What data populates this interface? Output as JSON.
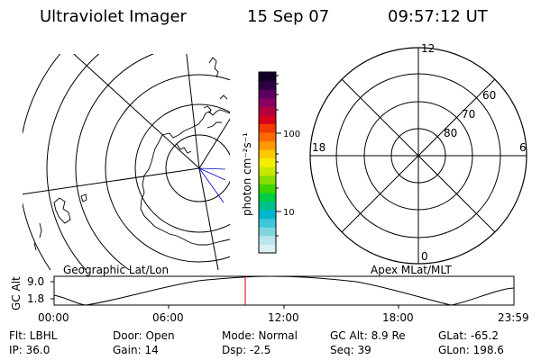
{
  "header": {
    "instrument": "Ultraviolet Imager",
    "date": "15 Sep 07",
    "time": "09:57:12 UT"
  },
  "left_panel": {
    "label": "Geographic Lat/Lon"
  },
  "colorbar": {
    "unit_label": "photon cm⁻²s⁻¹",
    "ticks": [
      "100",
      "10"
    ],
    "scale": "log",
    "colors": [
      "#d9f0f2",
      "#b8e6ea",
      "#7fd6de",
      "#3cc8d8",
      "#00b7cf",
      "#00c08a",
      "#00cc44",
      "#3dd400",
      "#88dd00",
      "#c8e600",
      "#f3ee00",
      "#ffc800",
      "#ff9800",
      "#ff6a00",
      "#f03a00",
      "#d8001a",
      "#b2003f",
      "#8a0060",
      "#5a0060",
      "#2b0040",
      "#120025"
    ]
  },
  "right_panel": {
    "label": "Apex MLat/MLT",
    "mlt_labels": {
      "top": "12",
      "bottom": "0",
      "left": "18",
      "right": "6"
    },
    "lat_labels": [
      "60",
      "70",
      "80"
    ]
  },
  "altitude_plot": {
    "ylabel": "GC Alt",
    "yticks": [
      "9.0",
      "1.8"
    ],
    "xticks": [
      "00:00",
      "06:00",
      "12:00",
      "18:00",
      "23:59"
    ],
    "marker_color": "#e00000",
    "marker_time": "09:57"
  },
  "info": {
    "flt": "Flt: LBHL",
    "ip": "IP: 36.0",
    "door": "Door: Open",
    "gain": "Gain: 14",
    "mode": "Mode: Normal",
    "dsp": "Dsp:    -2.5",
    "gc_alt": "GC Alt: 8.9 Re",
    "seq": "Seq: 39",
    "glat": "GLat: -65.2",
    "glon": "GLon: 198.6"
  }
}
